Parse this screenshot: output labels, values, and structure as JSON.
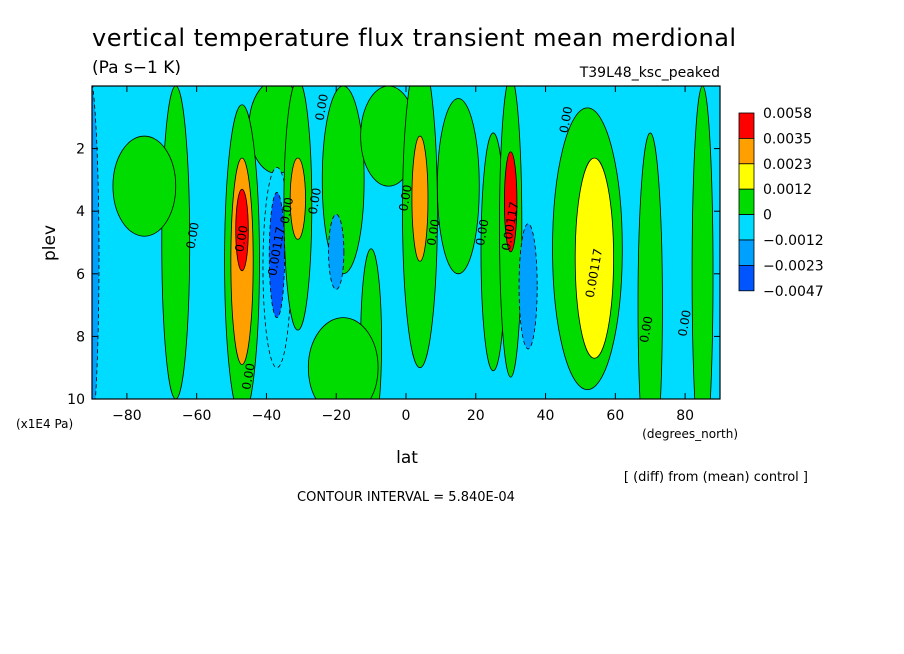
{
  "chart_data": {
    "type": "heatmap",
    "title": "vertical temperature flux transient mean merdional",
    "units": "(Pa s−1 K)",
    "run_label": "T39L48_ksc_peaked",
    "xlabel": "lat",
    "x_units": "(degrees_north)",
    "ylabel": "plev",
    "y_units": "(x1E4 Pa)",
    "xlim": [
      -90,
      90
    ],
    "ylim": [
      10,
      0
    ],
    "x_ticks": [
      -80,
      -60,
      -40,
      -20,
      0,
      20,
      40,
      60,
      80
    ],
    "y_ticks": [
      2,
      4,
      6,
      8,
      10
    ],
    "x_tick_labels": [
      "−80",
      "−60",
      "−40",
      "−20",
      "0",
      "20",
      "40",
      "60",
      "80"
    ],
    "y_tick_labels": [
      "2",
      "4",
      "6",
      "8",
      "10"
    ],
    "colorbar": {
      "levels": [
        "0.0058",
        "0.0035",
        "0.0023",
        "0.0012",
        "0",
        "−0.0012",
        "−0.0023",
        "−0.0047"
      ],
      "colors": [
        "#ff0000",
        "#ff9f00",
        "#ffff00",
        "#00dc00",
        "#00dcff",
        "#00a0ff",
        "#0055ff",
        "#0055ff"
      ]
    },
    "contour_interval_text": "CONTOUR INTERVAL = 5.840E-04",
    "diff_note": "[ (diff) from (mean) control ]",
    "contour_labels": [
      {
        "text": "0.00",
        "lat": -23,
        "p": 0.7
      },
      {
        "text": "0.00",
        "lat": 47,
        "p": 1.1
      },
      {
        "text": "0.00",
        "lat": -60,
        "p": 4.8
      },
      {
        "text": "0.00",
        "lat": -46,
        "p": 4.9
      },
      {
        "text": "0.00117",
        "lat": -36,
        "p": 5.3
      },
      {
        "text": "0.00",
        "lat": -33,
        "p": 4.0
      },
      {
        "text": "0.00",
        "lat": -25,
        "p": 3.7
      },
      {
        "text": "0.00",
        "lat": 1,
        "p": 3.6
      },
      {
        "text": "0.00",
        "lat": 9,
        "p": 4.7
      },
      {
        "text": "0.00",
        "lat": 23,
        "p": 4.7
      },
      {
        "text": "0.00117",
        "lat": 31,
        "p": 4.5
      },
      {
        "text": "0.00117",
        "lat": 55,
        "p": 6.0
      },
      {
        "text": "0.00",
        "lat": 70,
        "p": 7.8
      },
      {
        "text": "0.00",
        "lat": 81,
        "p": 7.6
      },
      {
        "text": "0.00",
        "lat": -44,
        "p": 9.3
      }
    ],
    "fields": {
      "background": "#00dcff",
      "blobs": [
        {
          "lat": -91,
          "p": 5.5,
          "rx": 3,
          "ry": 6,
          "v": -0.0015
        },
        {
          "lat": -75,
          "p": 3.2,
          "rx": 9,
          "ry": 1.6,
          "v": 0.0005
        },
        {
          "lat": -66,
          "p": 5.0,
          "rx": 4,
          "ry": 5,
          "v": 0.0004
        },
        {
          "lat": -47,
          "p": 5.6,
          "rx": 5,
          "ry": 5,
          "v": 0.001
        },
        {
          "lat": -47,
          "p": 5.6,
          "rx": 3.2,
          "ry": 3.3,
          "v": 0.0025
        },
        {
          "lat": -47,
          "p": 4.6,
          "rx": 1.8,
          "ry": 1.3,
          "v": 0.004
        },
        {
          "lat": -37,
          "p": 5.8,
          "rx": 4,
          "ry": 3.2,
          "v": -0.0009
        },
        {
          "lat": -37,
          "p": 5.4,
          "rx": 2.2,
          "ry": 2,
          "v": -0.0028
        },
        {
          "lat": -31,
          "p": 3.8,
          "rx": 4,
          "ry": 4,
          "v": 0.0009
        },
        {
          "lat": -31,
          "p": 3.6,
          "rx": 2.2,
          "ry": 1.3,
          "v": 0.003
        },
        {
          "lat": -37,
          "p": 1.3,
          "rx": 8,
          "ry": 1.5,
          "v": 0.0004
        },
        {
          "lat": -18,
          "p": 3.0,
          "rx": 6,
          "ry": 3.0,
          "v": 0.0004
        },
        {
          "lat": -20,
          "p": 5.3,
          "rx": 2.2,
          "ry": 1.2,
          "v": -0.0018
        },
        {
          "lat": -5,
          "p": 1.6,
          "rx": 8,
          "ry": 1.6,
          "v": 0.0004
        },
        {
          "lat": -18,
          "p": 9.0,
          "rx": 10,
          "ry": 1.6,
          "v": 0.0004
        },
        {
          "lat": 4,
          "p": 4.0,
          "rx": 5,
          "ry": 5,
          "v": 0.0009
        },
        {
          "lat": 4,
          "p": 3.6,
          "rx": 2.3,
          "ry": 2.0,
          "v": 0.003
        },
        {
          "lat": 15,
          "p": 3.2,
          "rx": 6,
          "ry": 2.8,
          "v": 0.0004
        },
        {
          "lat": 25,
          "p": 5.3,
          "rx": 3.5,
          "ry": 3.8,
          "v": 0.0005
        },
        {
          "lat": 30,
          "p": 4.5,
          "rx": 3.2,
          "ry": 4.8,
          "v": 0.001
        },
        {
          "lat": 30,
          "p": 3.7,
          "rx": 1.8,
          "ry": 1.6,
          "v": 0.004
        },
        {
          "lat": 35,
          "p": 6.4,
          "rx": 2.6,
          "ry": 2.0,
          "v": -0.002
        },
        {
          "lat": 52,
          "p": 5.2,
          "rx": 10,
          "ry": 4.5,
          "v": 0.0008
        },
        {
          "lat": 54,
          "p": 5.5,
          "rx": 5.5,
          "ry": 3.2,
          "v": 0.002
        },
        {
          "lat": 70,
          "p": 7.0,
          "rx": 3.5,
          "ry": 5.5,
          "v": 0.0004
        },
        {
          "lat": 85,
          "p": 6.0,
          "rx": 3,
          "ry": 6,
          "v": 0.0004
        },
        {
          "lat": -10,
          "p": 8.2,
          "rx": 3,
          "ry": 3,
          "v": 0.0003
        }
      ]
    }
  }
}
